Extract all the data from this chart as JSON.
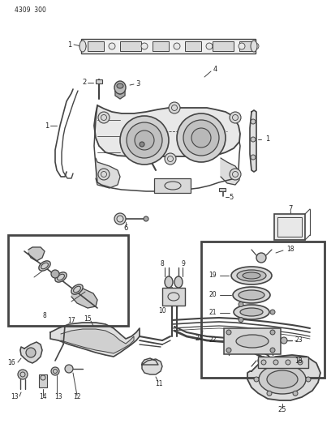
{
  "part_number": "4309  300",
  "bg_color": "#ffffff",
  "line_color": "#444444",
  "text_color": "#222222",
  "fig_width": 4.08,
  "fig_height": 5.33,
  "dpi": 100
}
